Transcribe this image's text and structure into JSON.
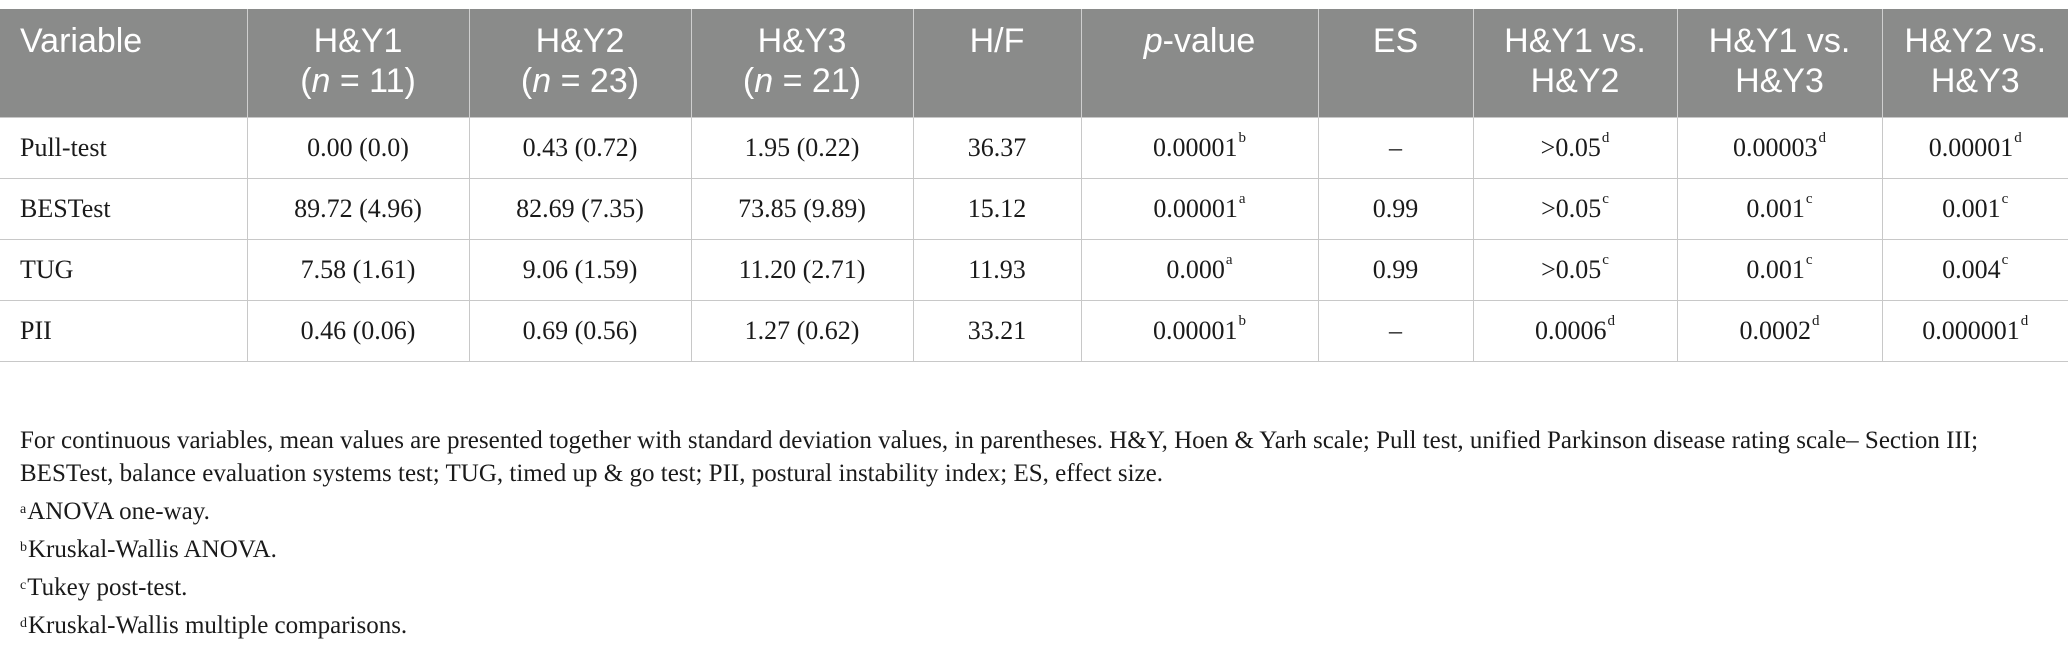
{
  "table": {
    "headers": [
      {
        "line1": "Variable",
        "line2": ""
      },
      {
        "line1": "H&Y1",
        "pre": "(",
        "n": "n",
        "post": " = 11)"
      },
      {
        "line1": "H&Y2",
        "pre": "(",
        "n": "n",
        "post": " = 23)"
      },
      {
        "line1": "H&Y3",
        "pre": "(",
        "n": "n",
        "post": " = 21)"
      },
      {
        "line1": "H/F",
        "line2": ""
      },
      {
        "p_italic": "p",
        "p_rest": "-value"
      },
      {
        "line1": "ES",
        "line2": ""
      },
      {
        "line1": "H&Y1 vs.",
        "line2": "H&Y2"
      },
      {
        "line1": "H&Y1 vs.",
        "line2": "H&Y3"
      },
      {
        "line1": "H&Y2 vs.",
        "line2": "H&Y3"
      }
    ],
    "rows": [
      {
        "variable": "Pull-test",
        "hy1": "0.00 (0.0)",
        "hy2": "0.43 (0.72)",
        "hy3": "1.95 (0.22)",
        "hf": "36.37",
        "p": {
          "v": "0.00001",
          "s": "b"
        },
        "es": "–",
        "c12": {
          "v": ">0.05",
          "s": "d"
        },
        "c13": {
          "v": "0.00003",
          "s": "d"
        },
        "c23": {
          "v": "0.00001",
          "s": "d"
        }
      },
      {
        "variable": "BESTest",
        "hy1": "89.72 (4.96)",
        "hy2": "82.69 (7.35)",
        "hy3": "73.85 (9.89)",
        "hf": "15.12",
        "p": {
          "v": "0.00001",
          "s": "a"
        },
        "es": "0.99",
        "c12": {
          "v": ">0.05",
          "s": "c"
        },
        "c13": {
          "v": "0.001",
          "s": "c"
        },
        "c23": {
          "v": "0.001",
          "s": "c"
        }
      },
      {
        "variable": "TUG",
        "hy1": "7.58 (1.61)",
        "hy2": "9.06 (1.59)",
        "hy3": "11.20 (2.71)",
        "hf": "11.93",
        "p": {
          "v": "0.000",
          "s": "a"
        },
        "es": "0.99",
        "c12": {
          "v": ">0.05",
          "s": "c"
        },
        "c13": {
          "v": "0.001",
          "s": "c"
        },
        "c23": {
          "v": "0.004",
          "s": "c"
        }
      },
      {
        "variable": "PII",
        "hy1": "0.46 (0.06)",
        "hy2": "0.69 (0.56)",
        "hy3": "1.27 (0.62)",
        "hf": "33.21",
        "p": {
          "v": "0.00001",
          "s": "b"
        },
        "es": "–",
        "c12": {
          "v": "0.0006",
          "s": "d"
        },
        "c13": {
          "v": "0.0002",
          "s": "d"
        },
        "c23": {
          "v": "0.000001",
          "s": "d"
        }
      }
    ]
  },
  "notes": {
    "main": "For continuous variables, mean values are presented together with standard deviation values, in parentheses. H&Y, Hoen & Yarh scale; Pull test, unified Parkinson disease rating scale– Section III; BESTest, balance evaluation systems test; TUG, timed up & go test; PII, postural instability index; ES, effect size.",
    "footnotes": [
      {
        "mark": "a",
        "text": "ANOVA one-way."
      },
      {
        "mark": "b",
        "text": "Kruskal-Wallis ANOVA."
      },
      {
        "mark": "c",
        "text": "Tukey post-test."
      },
      {
        "mark": "d",
        "text": "Kruskal-Wallis multiple comparisons."
      }
    ]
  }
}
